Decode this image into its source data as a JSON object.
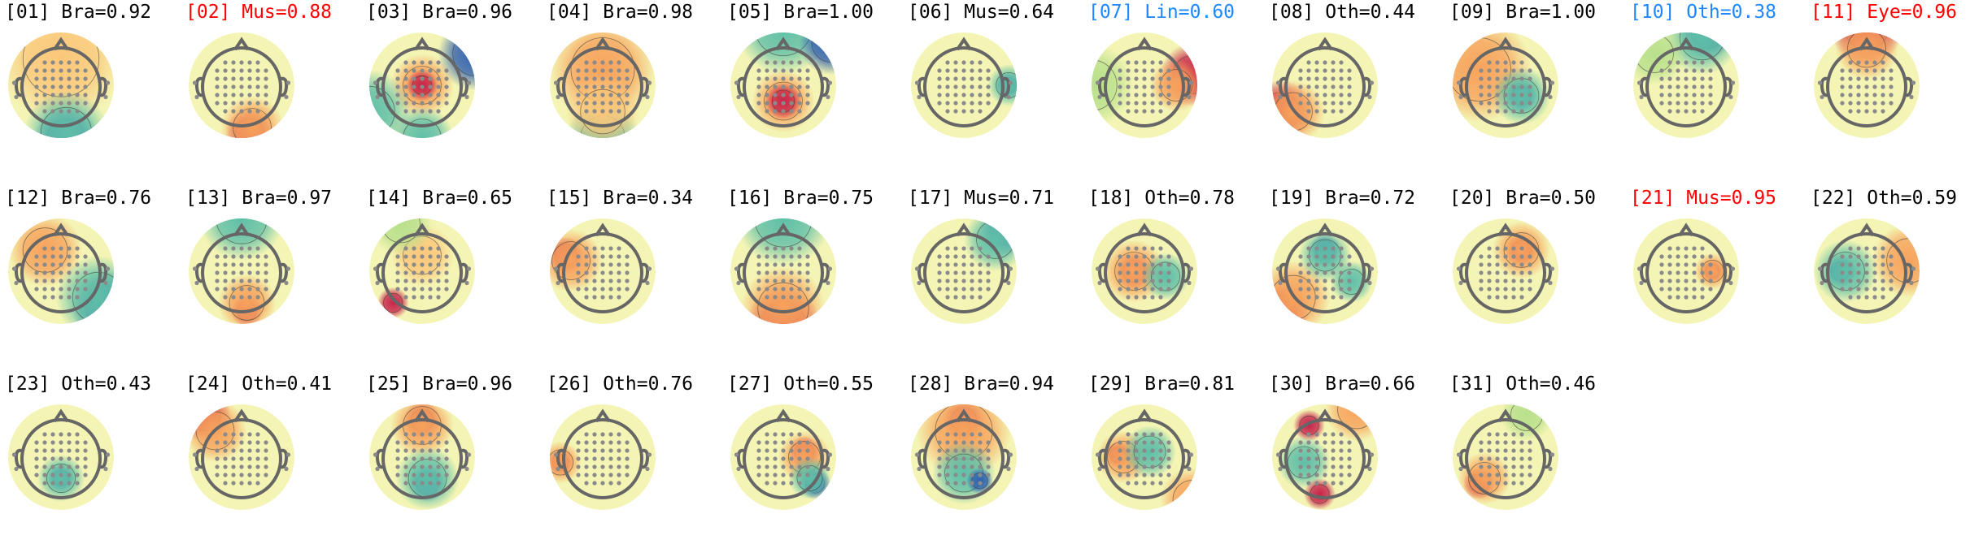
{
  "chart_data": {
    "type": "heatmap",
    "description_kind": "topomap-grid",
    "colors": {
      "brain": "#000000",
      "artifact": "#ff0000",
      "uncertain": "#1e88ff"
    },
    "colormap": [
      "#3060b0",
      "#5fbfa8",
      "#e4f09a",
      "#fbe9a0",
      "#f7a35c",
      "#c8244a"
    ],
    "components": [
      {
        "label": "[01] Bra=0.92",
        "status": "brain"
      },
      {
        "label": "[02] Mus=0.88",
        "status": "artifact"
      },
      {
        "label": "[03] Bra=0.96",
        "status": "brain"
      },
      {
        "label": "[04] Bra=0.98",
        "status": "brain"
      },
      {
        "label": "[05] Bra=1.00",
        "status": "brain"
      },
      {
        "label": "[06] Mus=0.64",
        "status": "brain"
      },
      {
        "label": "[07] Lin=0.60",
        "status": "uncertain"
      },
      {
        "label": "[08] Oth=0.44",
        "status": "brain"
      },
      {
        "label": "[09] Bra=1.00",
        "status": "brain"
      },
      {
        "label": "[10] Oth=0.38",
        "status": "uncertain"
      },
      {
        "label": "[11] Eye=0.96",
        "status": "artifact"
      },
      {
        "label": "[12] Bra=0.76",
        "status": "brain"
      },
      {
        "label": "[13] Bra=0.97",
        "status": "brain"
      },
      {
        "label": "[14] Bra=0.65",
        "status": "brain"
      },
      {
        "label": "[15] Bra=0.34",
        "status": "brain"
      },
      {
        "label": "[16] Bra=0.75",
        "status": "brain"
      },
      {
        "label": "[17] Mus=0.71",
        "status": "brain"
      },
      {
        "label": "[18] Oth=0.78",
        "status": "brain"
      },
      {
        "label": "[19] Bra=0.72",
        "status": "brain"
      },
      {
        "label": "[20] Bra=0.50",
        "status": "brain"
      },
      {
        "label": "[21] Mus=0.95",
        "status": "artifact"
      },
      {
        "label": "[22] Oth=0.59",
        "status": "brain"
      },
      {
        "label": "[23] Oth=0.43",
        "status": "brain"
      },
      {
        "label": "[24] Oth=0.41",
        "status": "brain"
      },
      {
        "label": "[25] Bra=0.96",
        "status": "brain"
      },
      {
        "label": "[26] Oth=0.76",
        "status": "brain"
      },
      {
        "label": "[27] Oth=0.55",
        "status": "brain"
      },
      {
        "label": "[28] Bra=0.94",
        "status": "brain"
      },
      {
        "label": "[29] Bra=0.81",
        "status": "brain"
      },
      {
        "label": "[30] Bra=0.66",
        "status": "brain"
      },
      {
        "label": "[31] Oth=0.46",
        "status": "brain"
      }
    ]
  }
}
